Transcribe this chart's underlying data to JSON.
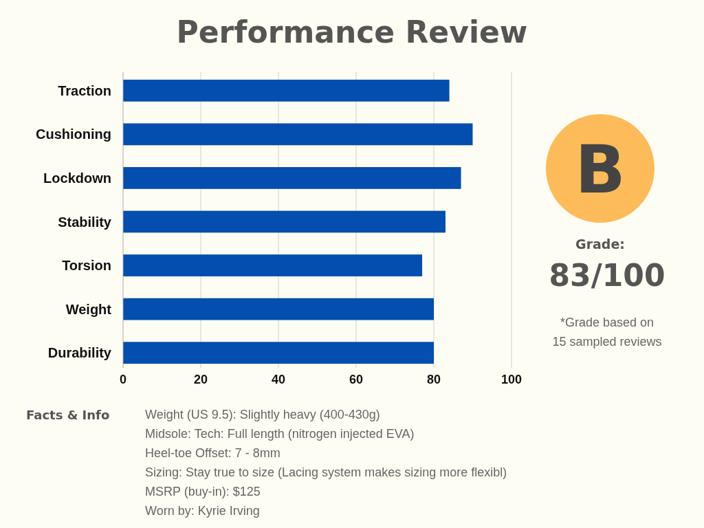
{
  "chart_data": {
    "type": "bar",
    "orientation": "horizontal",
    "title": "Performance Review",
    "categories": [
      "Traction",
      "Cushioning",
      "Lockdown",
      "Stability",
      "Torsion",
      "Weight",
      "Durability"
    ],
    "values": [
      84,
      90,
      87,
      83,
      77,
      80,
      80
    ],
    "color": "#034eae",
    "xlim": [
      0,
      100
    ],
    "xticks": [
      0,
      20,
      40,
      60,
      80,
      100
    ],
    "grid": "x",
    "annotations": [
      "B",
      "Grade:",
      "83/100",
      "*Grade based on",
      "15 sampled reviews",
      "Facts & Info",
      "Weight (US 9.5):  Slightly heavy (400-430g)",
      "Midsole: Tech:  Full length (nitrogen injected EVA)",
      "Heel-toe Offset:  7 - 8mm",
      "Sizing: Stay true to size (Lacing system makes sizing more flexibl)",
      "MSRP (buy-in):  $125",
      "Worn by:  Kyrie Irving"
    ]
  }
}
